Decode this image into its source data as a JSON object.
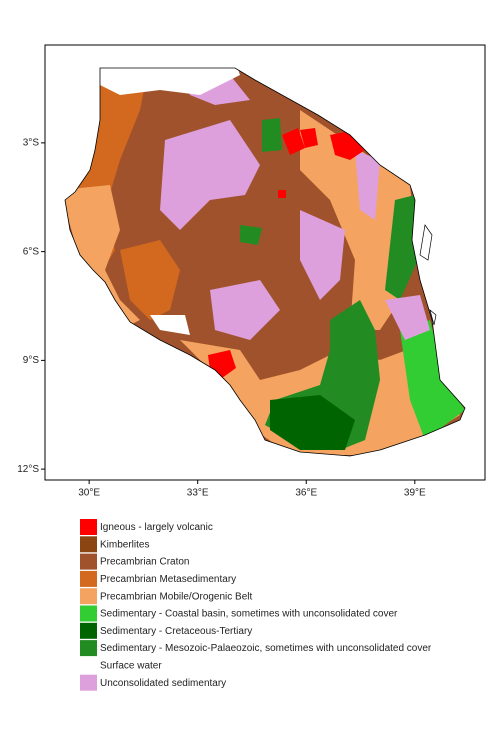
{
  "map": {
    "xlim": [
      28.78,
      40.94
    ],
    "ylim": [
      -12.3,
      -0.3
    ],
    "xticks": [
      {
        "value": 30,
        "label": "30°E"
      },
      {
        "value": 33,
        "label": "33°E"
      },
      {
        "value": 36,
        "label": "36°E"
      },
      {
        "value": 39,
        "label": "39°E"
      }
    ],
    "yticks": [
      {
        "value": -3,
        "label": "3°S"
      },
      {
        "value": -6,
        "label": "6°S"
      },
      {
        "value": -9,
        "label": "9°S"
      },
      {
        "value": -12,
        "label": "12°S"
      }
    ],
    "legend": [
      {
        "name": "Igneous - largely volcanic",
        "color": "#ff0000"
      },
      {
        "name": "Kimberlites",
        "color": "#8b4513"
      },
      {
        "name": "Precambrian Craton",
        "color": "#a0522d"
      },
      {
        "name": "Precambrian Metasedimentary",
        "color": "#d2691e"
      },
      {
        "name": "Precambrian Mobile/Orogenic Belt",
        "color": "#f4a460"
      },
      {
        "name": "Sedimentary - Coastal basin, sometimes with unconsolidated cover",
        "color": "#32cd32"
      },
      {
        "name": "Sedimentary - Cretaceous-Tertiary",
        "color": "#006400"
      },
      {
        "name": "Sedimentary - Mesozoic-Palaeozoic, sometimes with unconsolidated cover",
        "color": "#228b22"
      },
      {
        "name": "Surface water",
        "color": "#ffffff"
      },
      {
        "name": "Unconsolidated sedimentary",
        "color": "#dda0dd"
      }
    ]
  }
}
